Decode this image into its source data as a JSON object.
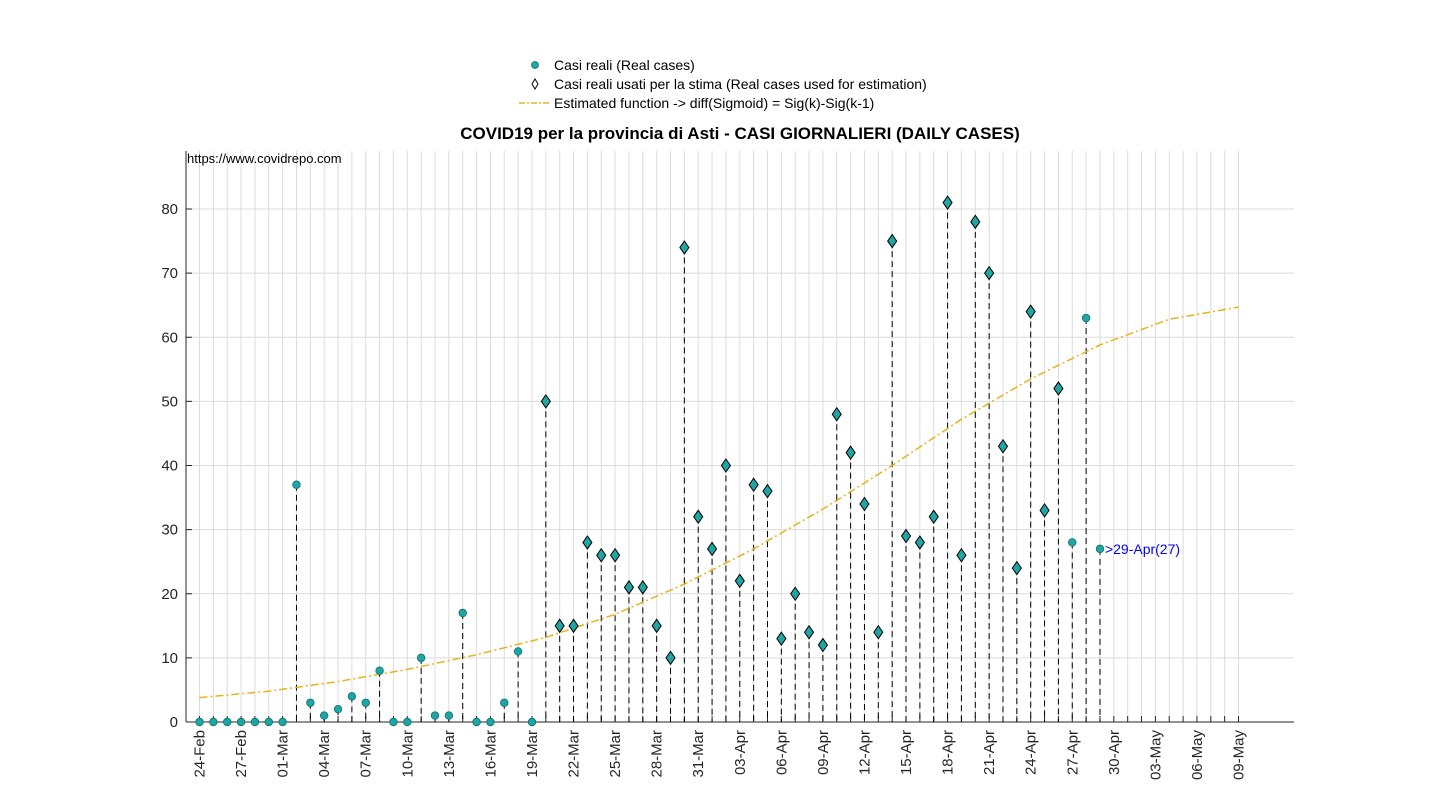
{
  "source_text": "https://www.covidrepo.com",
  "legend": {
    "real": "Casi reali (Real cases)",
    "used": "Casi reali usati per la stima (Real cases used for estimation)",
    "fit": "Estimated function -> diff(Sigmoid) = Sig(k)-Sig(k-1)"
  },
  "colors": {
    "marker": "#1fa5a3",
    "fit": "#e6b31e",
    "annotation": "#0000ff"
  },
  "chart_data": {
    "type": "scatter",
    "title": "COVID19 per la provincia di Asti - CASI GIORNALIERI (DAILY CASES)",
    "xlabel": "",
    "ylabel": "",
    "x_start_date": "24-Feb",
    "x_range_days": [
      -1,
      77
    ],
    "ylim": [
      0,
      90
    ],
    "yticks": [
      0,
      10,
      20,
      30,
      40,
      50,
      60,
      70,
      80
    ],
    "xtick_labels": [
      "24-Feb",
      "27-Feb",
      "01-Mar",
      "04-Mar",
      "07-Mar",
      "10-Mar",
      "13-Mar",
      "16-Mar",
      "19-Mar",
      "22-Mar",
      "25-Mar",
      "28-Mar",
      "31-Mar",
      "03-Apr",
      "06-Apr",
      "09-Apr",
      "12-Apr",
      "15-Apr",
      "18-Apr",
      "21-Apr",
      "24-Apr",
      "27-Apr",
      "30-Apr",
      "03-May",
      "06-May",
      "09-May"
    ],
    "grid": true,
    "series": [
      {
        "name": "Casi reali (Real cases)",
        "values": [
          0,
          0,
          0,
          0,
          0,
          0,
          0,
          37,
          3,
          1,
          2,
          4,
          3,
          8,
          0,
          0,
          10,
          1,
          1,
          17,
          0,
          0,
          3,
          11,
          0,
          50,
          15,
          15,
          28,
          26,
          26,
          21,
          21,
          15,
          10,
          74,
          32,
          27,
          40,
          22,
          37,
          36,
          13,
          20,
          14,
          12,
          48,
          42,
          34,
          14,
          75,
          29,
          28,
          32,
          81,
          26,
          78,
          70,
          43,
          24,
          64,
          33,
          52,
          28,
          63,
          27
        ]
      },
      {
        "name": "Casi reali usati per la stima (Real cases used for estimation)",
        "start_index": 25,
        "end_index": 62
      },
      {
        "name": "Estimated function -> diff(Sigmoid) = Sig(k)-Sig(k-1)",
        "x": [
          0,
          5,
          10,
          15,
          20,
          25,
          30,
          35,
          40,
          45,
          50,
          55,
          60,
          65,
          70,
          75
        ],
        "values": [
          3.8,
          4.8,
          6.3,
          8.2,
          10.5,
          13.2,
          16.8,
          21.5,
          27,
          33.2,
          40,
          47.2,
          53.5,
          58.8,
          62.8,
          64.7
        ]
      }
    ],
    "annotation": {
      "text": ">29-Apr(27)",
      "x_index": 65,
      "y": 27
    }
  }
}
